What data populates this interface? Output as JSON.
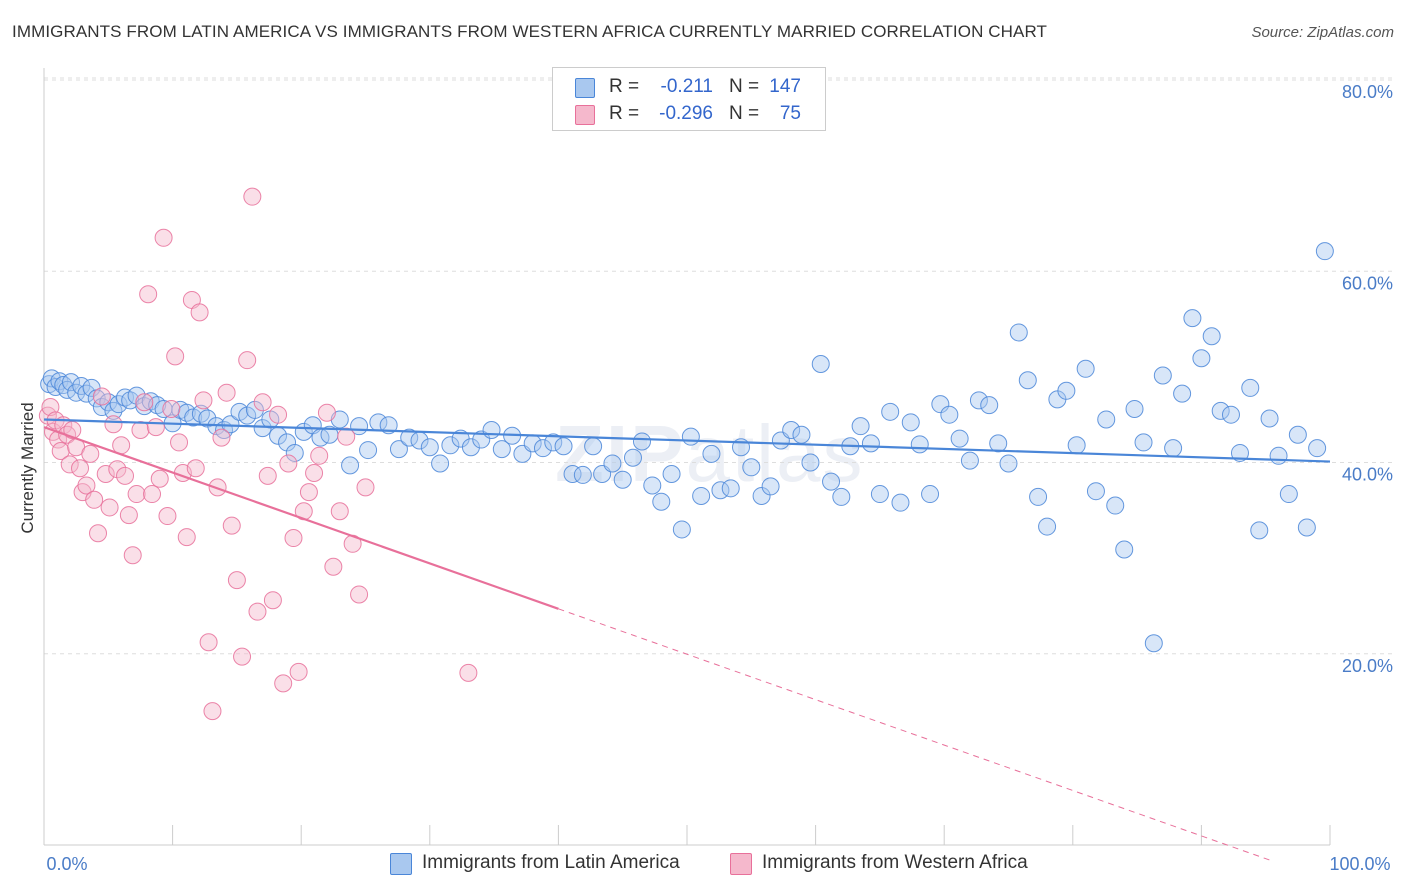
{
  "title": "IMMIGRANTS FROM LATIN AMERICA VS IMMIGRANTS FROM WESTERN AFRICA CURRENTLY MARRIED CORRELATION CHART",
  "source": "Source: ZipAtlas.com",
  "watermark": {
    "bold": "ZIP",
    "light": "atlas"
  },
  "colors": {
    "blue": "#4a86d8",
    "blue_fill": "#a9c8ef",
    "pink": "#e8709a",
    "pink_fill": "#f5b8cc",
    "grid": "#dddddd",
    "tick_text": "#4a7cc7"
  },
  "legend": {
    "series1": {
      "r_label": "R =",
      "r_value": "-0.211",
      "n_label": "N =",
      "n_value": "147"
    },
    "series2": {
      "r_label": "R =",
      "r_value": "-0.296",
      "n_label": "N =",
      "n_value": "75"
    }
  },
  "bottom_legend": {
    "series1": "Immigrants from Latin America",
    "series2": "Immigrants from Western Africa"
  },
  "chart_data": {
    "type": "scatter",
    "title": "IMMIGRANTS FROM LATIN AMERICA VS IMMIGRANTS FROM WESTERN AFRICA CURRENTLY MARRIED CORRELATION CHART",
    "xlabel": "",
    "ylabel": "Currently Married",
    "xlim": [
      0,
      100
    ],
    "ylim": [
      0,
      80
    ],
    "x_ticks": [
      "0.0%",
      "100.0%"
    ],
    "y_ticks": [
      {
        "value": 20,
        "label": "20.0%"
      },
      {
        "value": 40,
        "label": "40.0%"
      },
      {
        "value": 60,
        "label": "60.0%"
      },
      {
        "value": 80,
        "label": "80.0%"
      }
    ],
    "series": [
      {
        "name": "Immigrants from Latin America",
        "color": "#4a86d8",
        "r": -0.211,
        "n": 147,
        "trend": {
          "x": [
            0,
            100
          ],
          "y": [
            44.5,
            40.1
          ],
          "dashed_from": null
        },
        "points": [
          [
            0.4,
            48.2
          ],
          [
            0.6,
            48.8
          ],
          [
            0.9,
            47.9
          ],
          [
            1.2,
            48.5
          ],
          [
            1.5,
            48.1
          ],
          [
            1.8,
            47.6
          ],
          [
            2.1,
            48.4
          ],
          [
            2.5,
            47.3
          ],
          [
            2.9,
            48.0
          ],
          [
            3.3,
            47.2
          ],
          [
            3.7,
            47.8
          ],
          [
            4.1,
            46.7
          ],
          [
            4.5,
            45.8
          ],
          [
            5.0,
            46.3
          ],
          [
            5.4,
            45.4
          ],
          [
            5.8,
            46.1
          ],
          [
            6.3,
            46.8
          ],
          [
            6.7,
            46.5
          ],
          [
            7.2,
            47.0
          ],
          [
            7.8,
            45.9
          ],
          [
            8.3,
            46.4
          ],
          [
            8.8,
            46.0
          ],
          [
            9.3,
            45.6
          ],
          [
            10.0,
            44.1
          ],
          [
            10.6,
            45.5
          ],
          [
            11.1,
            45.2
          ],
          [
            11.6,
            44.7
          ],
          [
            12.2,
            45.1
          ],
          [
            12.7,
            44.6
          ],
          [
            13.4,
            43.8
          ],
          [
            14.0,
            43.4
          ],
          [
            14.5,
            44.0
          ],
          [
            15.2,
            45.3
          ],
          [
            15.8,
            44.9
          ],
          [
            16.4,
            45.5
          ],
          [
            17.0,
            43.6
          ],
          [
            17.6,
            44.5
          ],
          [
            18.2,
            42.8
          ],
          [
            18.9,
            42.1
          ],
          [
            19.5,
            41.0
          ],
          [
            20.2,
            43.2
          ],
          [
            20.9,
            43.9
          ],
          [
            21.5,
            42.6
          ],
          [
            22.2,
            42.9
          ],
          [
            23.0,
            44.5
          ],
          [
            23.8,
            39.7
          ],
          [
            24.5,
            43.8
          ],
          [
            25.2,
            41.3
          ],
          [
            26.0,
            44.2
          ],
          [
            26.8,
            43.9
          ],
          [
            27.6,
            41.4
          ],
          [
            28.4,
            42.6
          ],
          [
            29.2,
            42.3
          ],
          [
            30.0,
            41.6
          ],
          [
            30.8,
            39.9
          ],
          [
            31.6,
            41.8
          ],
          [
            32.4,
            42.5
          ],
          [
            33.2,
            41.6
          ],
          [
            34.0,
            42.4
          ],
          [
            34.8,
            43.4
          ],
          [
            35.6,
            41.4
          ],
          [
            36.4,
            42.8
          ],
          [
            37.2,
            40.9
          ],
          [
            38.0,
            42.0
          ],
          [
            38.8,
            41.5
          ],
          [
            39.6,
            42.1
          ],
          [
            40.4,
            41.7
          ],
          [
            41.1,
            38.8
          ],
          [
            41.9,
            38.7
          ],
          [
            42.7,
            41.7
          ],
          [
            43.4,
            38.8
          ],
          [
            44.2,
            39.9
          ],
          [
            45.0,
            38.2
          ],
          [
            45.8,
            40.5
          ],
          [
            46.5,
            42.2
          ],
          [
            47.3,
            37.6
          ],
          [
            48.0,
            35.9
          ],
          [
            48.8,
            38.8
          ],
          [
            49.6,
            33.0
          ],
          [
            50.3,
            42.7
          ],
          [
            51.1,
            36.5
          ],
          [
            51.9,
            40.9
          ],
          [
            52.6,
            37.1
          ],
          [
            53.4,
            37.3
          ],
          [
            54.2,
            41.6
          ],
          [
            55.0,
            39.5
          ],
          [
            55.8,
            36.5
          ],
          [
            56.5,
            37.5
          ],
          [
            57.3,
            42.3
          ],
          [
            58.1,
            43.4
          ],
          [
            58.9,
            42.9
          ],
          [
            59.6,
            40.0
          ],
          [
            60.4,
            50.3
          ],
          [
            61.2,
            38.0
          ],
          [
            62.0,
            36.4
          ],
          [
            62.7,
            41.7
          ],
          [
            63.5,
            43.8
          ],
          [
            64.3,
            42.0
          ],
          [
            65.0,
            36.7
          ],
          [
            65.8,
            45.3
          ],
          [
            66.6,
            35.8
          ],
          [
            67.4,
            44.2
          ],
          [
            68.1,
            41.9
          ],
          [
            68.9,
            36.7
          ],
          [
            69.7,
            46.1
          ],
          [
            70.4,
            45.0
          ],
          [
            71.2,
            42.5
          ],
          [
            72.0,
            40.2
          ],
          [
            72.7,
            46.5
          ],
          [
            73.5,
            46.0
          ],
          [
            74.2,
            42.0
          ],
          [
            75.0,
            39.9
          ],
          [
            75.8,
            53.6
          ],
          [
            76.5,
            48.6
          ],
          [
            77.3,
            36.4
          ],
          [
            78.0,
            33.3
          ],
          [
            78.8,
            46.6
          ],
          [
            79.5,
            47.5
          ],
          [
            80.3,
            41.8
          ],
          [
            81.0,
            49.8
          ],
          [
            81.8,
            37.0
          ],
          [
            82.6,
            44.5
          ],
          [
            83.3,
            35.5
          ],
          [
            84.0,
            30.9
          ],
          [
            84.8,
            45.6
          ],
          [
            85.5,
            42.1
          ],
          [
            86.3,
            21.1
          ],
          [
            87.0,
            49.1
          ],
          [
            87.8,
            41.5
          ],
          [
            88.5,
            47.2
          ],
          [
            89.3,
            55.1
          ],
          [
            90.0,
            50.9
          ],
          [
            90.8,
            53.2
          ],
          [
            91.5,
            45.4
          ],
          [
            92.3,
            45.0
          ],
          [
            93.0,
            41.0
          ],
          [
            93.8,
            47.8
          ],
          [
            94.5,
            32.9
          ],
          [
            95.3,
            44.6
          ],
          [
            96.0,
            40.7
          ],
          [
            96.8,
            36.7
          ],
          [
            97.5,
            42.9
          ],
          [
            98.2,
            33.2
          ],
          [
            99.0,
            41.5
          ],
          [
            99.6,
            62.1
          ]
        ]
      },
      {
        "name": "Immigrants from Western Africa",
        "color": "#e8709a",
        "r": -0.296,
        "n": 75,
        "trend": {
          "x": [
            0,
            100
          ],
          "y": [
            43.7,
            -3.8
          ],
          "solid_until_x": 40
        },
        "points": [
          [
            0.3,
            44.9
          ],
          [
            0.5,
            45.8
          ],
          [
            0.7,
            43.2
          ],
          [
            0.9,
            44.4
          ],
          [
            1.1,
            42.4
          ],
          [
            1.3,
            41.2
          ],
          [
            1.5,
            43.9
          ],
          [
            1.8,
            42.9
          ],
          [
            2.0,
            39.8
          ],
          [
            2.2,
            43.4
          ],
          [
            2.5,
            41.6
          ],
          [
            2.8,
            39.4
          ],
          [
            3.0,
            36.9
          ],
          [
            3.3,
            37.6
          ],
          [
            3.6,
            40.9
          ],
          [
            3.9,
            36.1
          ],
          [
            4.2,
            32.6
          ],
          [
            4.5,
            46.9
          ],
          [
            4.8,
            38.8
          ],
          [
            5.1,
            35.3
          ],
          [
            5.4,
            44.0
          ],
          [
            5.7,
            39.3
          ],
          [
            6.0,
            41.8
          ],
          [
            6.3,
            38.6
          ],
          [
            6.6,
            34.5
          ],
          [
            6.9,
            30.3
          ],
          [
            7.2,
            36.7
          ],
          [
            7.5,
            43.4
          ],
          [
            7.8,
            46.3
          ],
          [
            8.1,
            57.6
          ],
          [
            8.4,
            36.7
          ],
          [
            8.7,
            43.7
          ],
          [
            9.0,
            38.3
          ],
          [
            9.3,
            63.5
          ],
          [
            9.6,
            34.4
          ],
          [
            9.9,
            45.6
          ],
          [
            10.2,
            51.1
          ],
          [
            10.5,
            42.1
          ],
          [
            10.8,
            38.9
          ],
          [
            11.1,
            32.2
          ],
          [
            11.5,
            57.0
          ],
          [
            11.8,
            39.4
          ],
          [
            12.1,
            55.7
          ],
          [
            12.4,
            46.5
          ],
          [
            12.8,
            21.2
          ],
          [
            13.1,
            14.0
          ],
          [
            13.5,
            37.4
          ],
          [
            13.8,
            42.6
          ],
          [
            14.2,
            47.3
          ],
          [
            14.6,
            33.4
          ],
          [
            15.0,
            27.7
          ],
          [
            15.4,
            19.7
          ],
          [
            15.8,
            50.7
          ],
          [
            16.2,
            67.8
          ],
          [
            16.6,
            24.4
          ],
          [
            17.0,
            46.3
          ],
          [
            17.4,
            38.6
          ],
          [
            17.8,
            25.6
          ],
          [
            18.2,
            45.0
          ],
          [
            18.6,
            16.9
          ],
          [
            19.0,
            39.9
          ],
          [
            19.4,
            32.1
          ],
          [
            19.8,
            18.1
          ],
          [
            20.2,
            34.9
          ],
          [
            20.6,
            36.9
          ],
          [
            21.0,
            38.9
          ],
          [
            21.4,
            40.7
          ],
          [
            22.0,
            45.2
          ],
          [
            22.5,
            29.1
          ],
          [
            23.0,
            34.9
          ],
          [
            23.5,
            42.7
          ],
          [
            24.0,
            31.5
          ],
          [
            24.5,
            26.2
          ],
          [
            25.0,
            37.4
          ],
          [
            33.0,
            18.0
          ]
        ]
      }
    ]
  }
}
